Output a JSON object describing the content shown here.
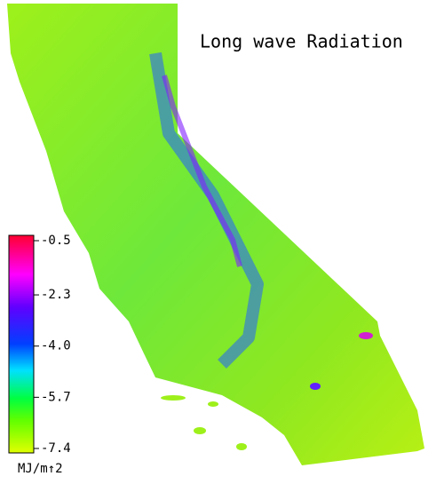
{
  "title": "Long wave Radiation",
  "colorbar": {
    "lim": [
      -7.4,
      -0.5
    ],
    "ticks": [
      -0.5,
      -2.3,
      {
        "value": -4,
        "label": "-4.0"
      },
      -5.7,
      -7.4
    ],
    "unit": "MJ/m↑2"
  }
}
